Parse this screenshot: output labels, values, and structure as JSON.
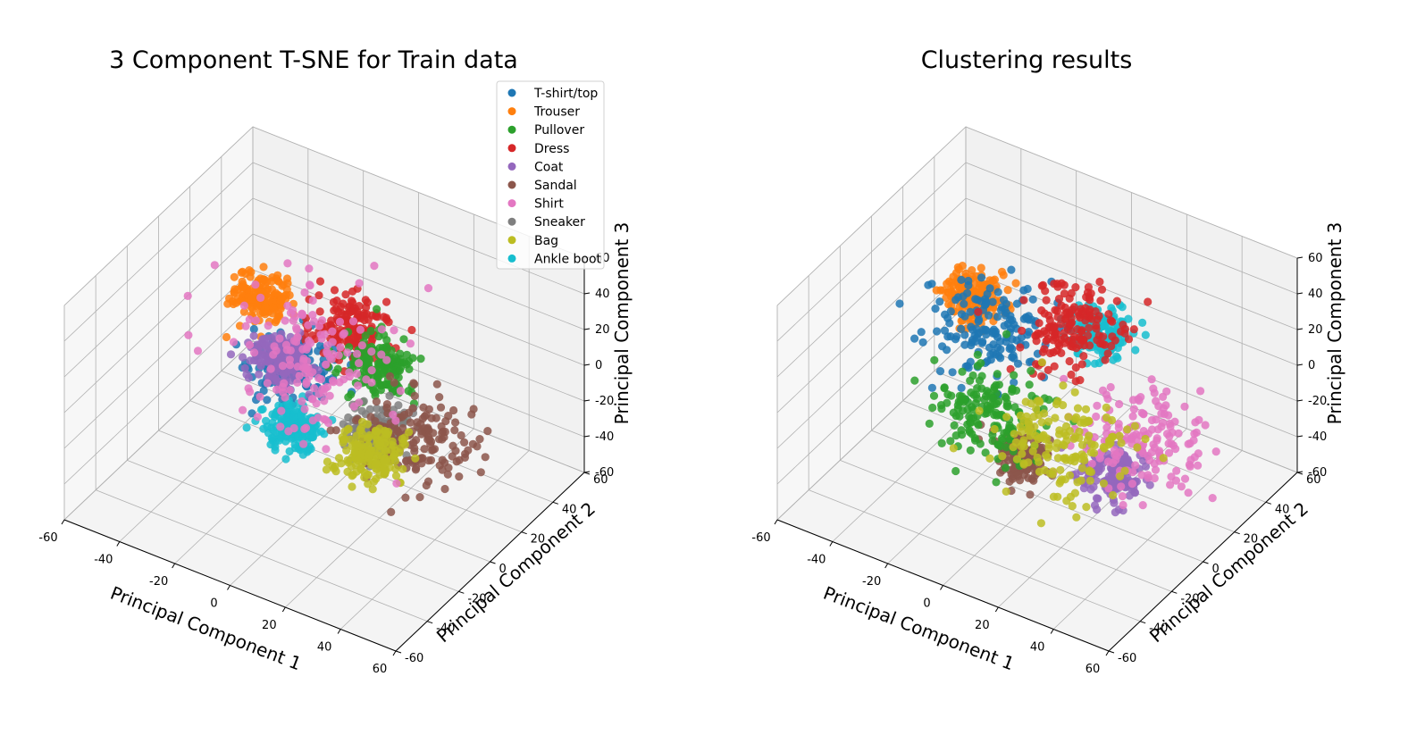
{
  "chart_data": [
    {
      "type": "scatter",
      "title": "3 Component T-SNE for Train data",
      "xlabel": "Principal Component 1",
      "ylabel": "Principal Component 2",
      "zlabel": "Principal Component 3",
      "xlim": [
        -60,
        60
      ],
      "ylim": [
        -60,
        60
      ],
      "zlim": [
        -60,
        60
      ],
      "ticks": [
        "-60",
        "-40",
        "-20",
        "0",
        "20",
        "40",
        "60"
      ],
      "grid": true,
      "legend_position": "top-right",
      "legend": [
        {
          "name": "T-shirt/top",
          "color": "#1f77b4"
        },
        {
          "name": "Trouser",
          "color": "#ff7f0e"
        },
        {
          "name": "Pullover",
          "color": "#2ca02c"
        },
        {
          "name": "Dress",
          "color": "#d62728"
        },
        {
          "name": "Coat",
          "color": "#9467bd"
        },
        {
          "name": "Sandal",
          "color": "#8c564b"
        },
        {
          "name": "Shirt",
          "color": "#e377c2"
        },
        {
          "name": "Sneaker",
          "color": "#7f7f7f"
        },
        {
          "name": "Bag",
          "color": "#bcbd22"
        },
        {
          "name": "Ankle boot",
          "color": "#17becf"
        }
      ],
      "clusters": [
        {
          "name": "Trouser",
          "color": "#ff7f0e",
          "x": -40,
          "y": 30,
          "z": 2,
          "spread": 5
        },
        {
          "name": "T-shirt/top",
          "color": "#1f77b4",
          "x": -18,
          "y": 12,
          "z": -10,
          "spread": 7
        },
        {
          "name": "Dress",
          "color": "#d62728",
          "x": -8,
          "y": 30,
          "z": 5,
          "spread": 6
        },
        {
          "name": "Pullover",
          "color": "#2ca02c",
          "x": 8,
          "y": 22,
          "z": -2,
          "spread": 6
        },
        {
          "name": "Ankle boot",
          "color": "#17becf",
          "x": -10,
          "y": -2,
          "z": -25,
          "spread": 5
        },
        {
          "name": "Sneaker",
          "color": "#7f7f7f",
          "x": 20,
          "y": 0,
          "z": -12,
          "spread": 5
        },
        {
          "name": "Sandal",
          "color": "#8c564b",
          "x": 30,
          "y": 5,
          "z": -12,
          "spread": 9
        },
        {
          "name": "Bag",
          "color": "#bcbd22",
          "x": 20,
          "y": -5,
          "z": -20,
          "spread": 6
        },
        {
          "name": "Coat",
          "color": "#9467bd",
          "x": -20,
          "y": 8,
          "z": -2,
          "spread": 5
        },
        {
          "name": "Shirt",
          "color": "#e377c2",
          "x": -12,
          "y": 14,
          "z": -3,
          "spread": 14
        }
      ]
    },
    {
      "type": "scatter",
      "title": "Clustering results",
      "xlabel": "Principal Component 1",
      "ylabel": "Principal Component 2",
      "zlabel": "Principal Component 3",
      "xlim": [
        -60,
        60
      ],
      "ylim": [
        -60,
        60
      ],
      "zlim": [
        -60,
        60
      ],
      "ticks": [
        "-60",
        "-40",
        "-20",
        "0",
        "20",
        "40",
        "60"
      ],
      "grid": true,
      "clusters": [
        {
          "color": "#ff7f0e",
          "x": -40,
          "y": 30,
          "z": 2,
          "spread": 5
        },
        {
          "color": "#17becf",
          "x": 5,
          "y": 30,
          "z": 8,
          "spread": 5
        },
        {
          "color": "#9467bd",
          "x": 30,
          "y": -5,
          "z": -25,
          "spread": 5
        },
        {
          "color": "#8c564b",
          "x": 0,
          "y": -10,
          "z": -30,
          "spread": 4
        },
        {
          "color": "#1f77b4",
          "x": -25,
          "y": 15,
          "z": 5,
          "spread": 10
        },
        {
          "color": "#d62728",
          "x": 0,
          "y": 25,
          "z": 12,
          "spread": 8
        },
        {
          "color": "#2ca02c",
          "x": -18,
          "y": 0,
          "z": -25,
          "spread": 9
        },
        {
          "color": "#e377c2",
          "x": 35,
          "y": 5,
          "z": -10,
          "spread": 10
        },
        {
          "color": "#bcbd22",
          "x": 12,
          "y": -5,
          "z": -18,
          "spread": 10
        }
      ]
    }
  ]
}
